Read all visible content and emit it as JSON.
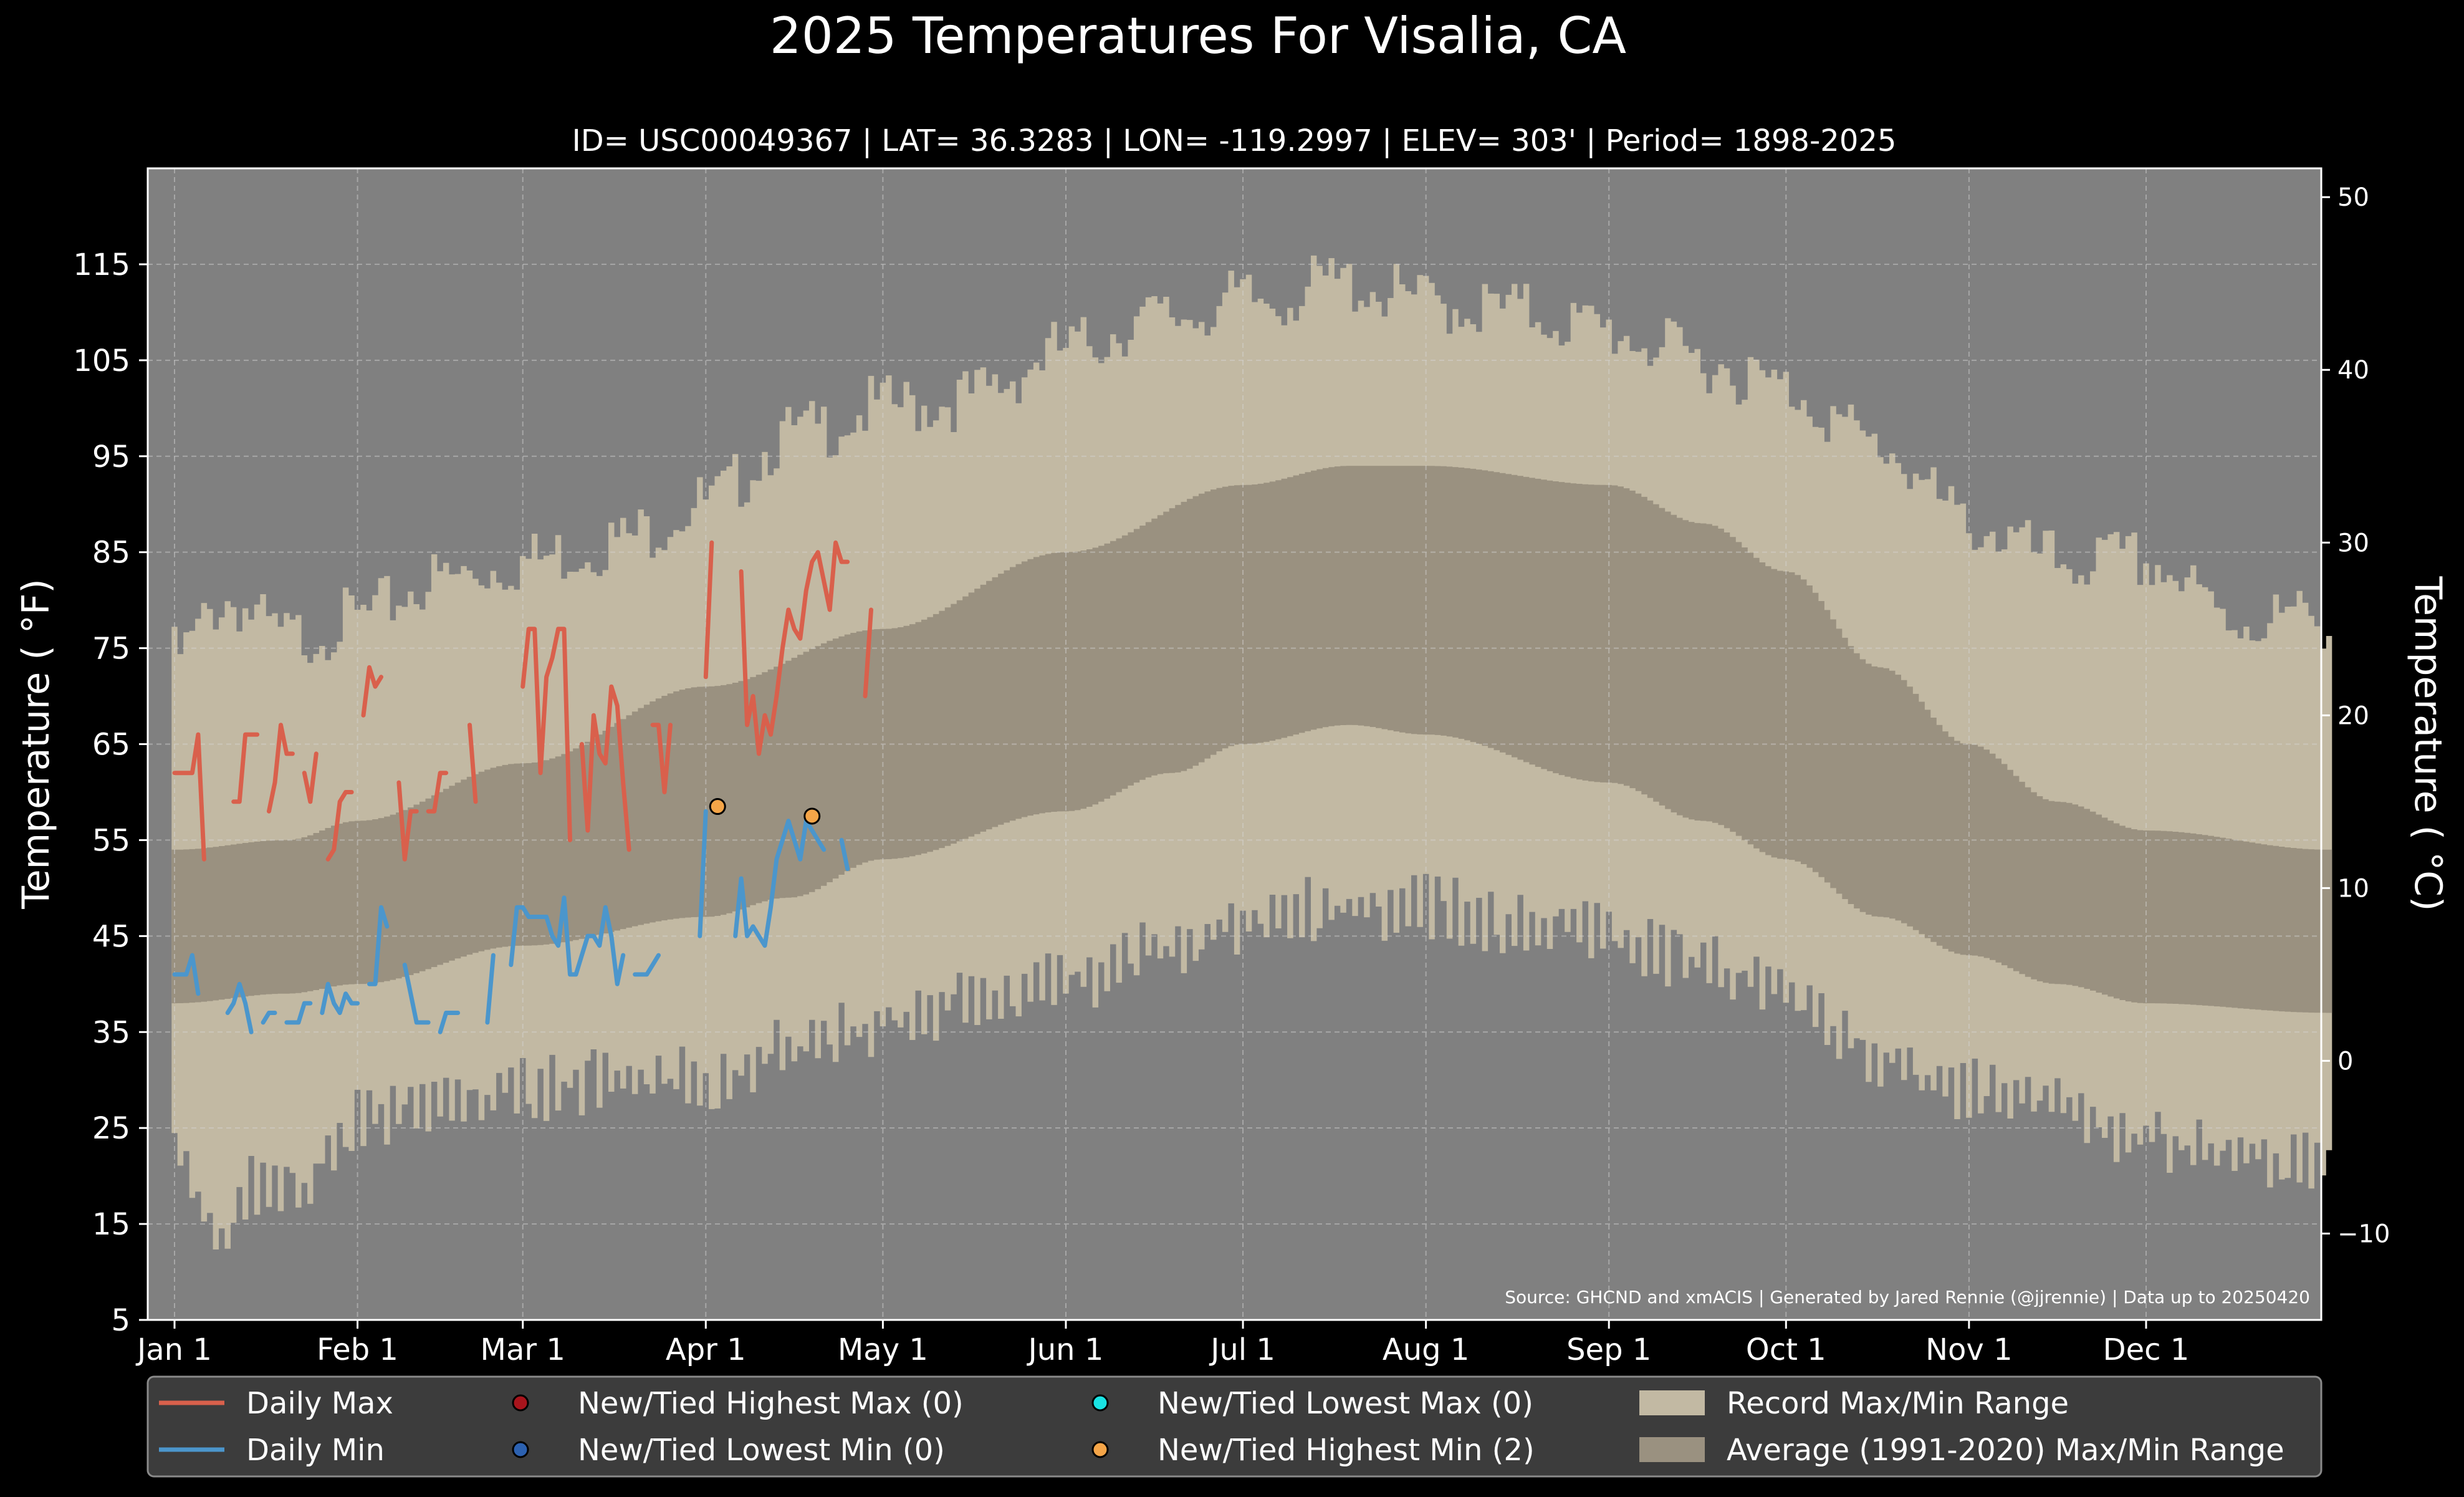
{
  "chart_data": {
    "type": "area",
    "title": "2025 Temperatures For Visalia, CA",
    "subtitle": "ID= USC00049367 | LAT= 36.3283 | LON= -119.2997 | ELEV= 303' | Period= 1898-2025",
    "ylabel": "Temperature ($^\\circ$F)",
    "ylabel_display": "Temperature ( °F)",
    "y2label_display": "Temperature ( °C)",
    "source": "Source: GHCND and xmACIS | Generated by Jared Rennie (@jjrennie) | Data up to 20250420",
    "xlim": [
      0,
      366
    ],
    "ylim": [
      5,
      125
    ],
    "grid": true,
    "legend_position": "bottom",
    "y_ticks": [
      5,
      15,
      25,
      35,
      45,
      55,
      65,
      75,
      85,
      95,
      105,
      115
    ],
    "y2_ticks": [
      -10,
      0,
      10,
      20,
      30,
      40,
      50
    ],
    "x_ticks": [
      {
        "label": "Jan 1",
        "day": 1
      },
      {
        "label": "Feb 1",
        "day": 32
      },
      {
        "label": "Mar 1",
        "day": 60
      },
      {
        "label": "Apr 1",
        "day": 91
      },
      {
        "label": "May 1",
        "day": 121
      },
      {
        "label": "Jun 1",
        "day": 152
      },
      {
        "label": "Jul 1",
        "day": 182
      },
      {
        "label": "Aug 1",
        "day": 213
      },
      {
        "label": "Sep 1",
        "day": 244
      },
      {
        "label": "Oct 1",
        "day": 274
      },
      {
        "label": "Nov 1",
        "day": 305
      },
      {
        "label": "Dec 1",
        "day": 335
      }
    ],
    "record_max_nodes": [
      [
        1,
        74
      ],
      [
        10,
        80
      ],
      [
        20,
        76
      ],
      [
        32,
        78
      ],
      [
        45,
        82
      ],
      [
        60,
        84
      ],
      [
        75,
        86
      ],
      [
        91,
        90
      ],
      [
        105,
        97
      ],
      [
        121,
        100
      ],
      [
        135,
        101
      ],
      [
        152,
        106
      ],
      [
        165,
        109
      ],
      [
        182,
        111
      ],
      [
        200,
        113
      ],
      [
        213,
        111
      ],
      [
        230,
        110
      ],
      [
        244,
        108
      ],
      [
        260,
        105
      ],
      [
        274,
        102
      ],
      [
        290,
        96
      ],
      [
        305,
        88
      ],
      [
        320,
        84
      ],
      [
        335,
        84
      ],
      [
        350,
        78
      ],
      [
        366,
        78
      ]
    ],
    "record_min_nodes": [
      [
        1,
        22
      ],
      [
        8,
        14
      ],
      [
        15,
        19
      ],
      [
        22,
        19
      ],
      [
        32,
        26
      ],
      [
        45,
        27
      ],
      [
        60,
        29
      ],
      [
        75,
        30
      ],
      [
        91,
        30
      ],
      [
        105,
        33
      ],
      [
        121,
        36
      ],
      [
        135,
        38
      ],
      [
        152,
        40
      ],
      [
        165,
        43
      ],
      [
        182,
        46
      ],
      [
        195,
        48
      ],
      [
        213,
        48
      ],
      [
        230,
        46
      ],
      [
        244,
        45
      ],
      [
        260,
        42
      ],
      [
        274,
        39
      ],
      [
        290,
        32
      ],
      [
        305,
        29
      ],
      [
        320,
        27
      ],
      [
        335,
        24
      ],
      [
        350,
        22
      ],
      [
        366,
        22
      ]
    ],
    "avg_max_nodes": [
      [
        1,
        54
      ],
      [
        20,
        55
      ],
      [
        32,
        57
      ],
      [
        60,
        63
      ],
      [
        91,
        71
      ],
      [
        121,
        77
      ],
      [
        152,
        85
      ],
      [
        182,
        92
      ],
      [
        200,
        94
      ],
      [
        213,
        94
      ],
      [
        244,
        92
      ],
      [
        260,
        88
      ],
      [
        274,
        83
      ],
      [
        290,
        73
      ],
      [
        305,
        65
      ],
      [
        320,
        59
      ],
      [
        335,
        56
      ],
      [
        366,
        54
      ]
    ],
    "avg_min_nodes": [
      [
        1,
        38
      ],
      [
        20,
        39
      ],
      [
        32,
        40
      ],
      [
        60,
        44
      ],
      [
        91,
        47
      ],
      [
        105,
        49
      ],
      [
        121,
        53
      ],
      [
        152,
        58
      ],
      [
        170,
        62
      ],
      [
        182,
        65
      ],
      [
        200,
        67
      ],
      [
        213,
        66
      ],
      [
        244,
        61
      ],
      [
        260,
        57
      ],
      [
        274,
        53
      ],
      [
        290,
        47
      ],
      [
        305,
        43
      ],
      [
        320,
        40
      ],
      [
        335,
        38
      ],
      [
        366,
        37
      ]
    ],
    "series": [
      {
        "name": "Daily Max",
        "color": "#d9604c",
        "values": [
          62,
          62,
          62,
          62,
          66,
          53,
          null,
          null,
          null,
          null,
          59,
          59,
          66,
          66,
          66,
          null,
          58,
          61,
          67,
          64,
          64,
          null,
          62,
          59,
          64,
          null,
          53,
          54,
          59,
          60,
          60,
          null,
          68,
          73,
          71,
          72,
          null,
          null,
          61,
          53,
          58,
          58,
          null,
          58,
          58,
          62,
          62,
          null,
          null,
          null,
          67,
          59,
          null,
          null,
          null,
          null,
          null,
          null,
          null,
          71,
          77,
          77,
          62,
          72,
          74,
          77,
          77,
          55,
          null,
          65,
          56,
          68,
          64,
          63,
          71,
          69,
          61,
          54,
          null,
          null,
          null,
          67,
          67,
          60,
          67,
          null,
          null,
          null,
          null,
          null,
          72,
          86,
          null,
          null,
          null,
          null,
          83,
          67,
          70,
          64,
          68,
          66,
          70,
          75,
          79,
          77,
          76,
          81,
          84,
          85,
          82,
          79,
          86,
          84,
          84,
          null,
          null,
          70,
          79
        ],
        "start_day": 1
      },
      {
        "name": "Daily Min",
        "color": "#4b96cc",
        "values": [
          41,
          41,
          41,
          43,
          39,
          null,
          null,
          null,
          null,
          37,
          38,
          40,
          38,
          35,
          null,
          36,
          37,
          37,
          null,
          36,
          36,
          36,
          38,
          38,
          null,
          37,
          40,
          38,
          37,
          39,
          38,
          38,
          null,
          40,
          40,
          48,
          46,
          null,
          null,
          42,
          39,
          36,
          36,
          36,
          null,
          35,
          37,
          37,
          37,
          null,
          null,
          null,
          null,
          36,
          43,
          null,
          null,
          42,
          48,
          48,
          47,
          47,
          47,
          47,
          45,
          44,
          49,
          41,
          41,
          43,
          45,
          45,
          44,
          48,
          45,
          40,
          43,
          null,
          41,
          41,
          41,
          42,
          43,
          null,
          null,
          null,
          null,
          null,
          null,
          45,
          58,
          null,
          null,
          null,
          null,
          45,
          51,
          45,
          46,
          45,
          44,
          48,
          53,
          55,
          57,
          55,
          53,
          57,
          56,
          55,
          54,
          null,
          null,
          55,
          52
        ],
        "start_day": 1
      }
    ],
    "markers": [
      {
        "series": "New/Tied Highest Min (2)",
        "day": 93,
        "value": 58.5,
        "color": "#f5a548"
      },
      {
        "series": "New/Tied Highest Min (2)",
        "day": 109,
        "value": 57.5,
        "color": "#f5a548"
      }
    ],
    "legend": [
      {
        "label": "Daily Max",
        "kind": "line",
        "color": "#d9604c"
      },
      {
        "label": "New/Tied Highest Max (0)",
        "kind": "marker",
        "color": "#a8141c"
      },
      {
        "label": "New/Tied Lowest Max (0)",
        "kind": "marker",
        "color": "#19e3e3"
      },
      {
        "label": "Record Max/Min Range",
        "kind": "patch",
        "color": "#c2b9a3"
      },
      {
        "label": "Daily Min",
        "kind": "line",
        "color": "#4b96cc"
      },
      {
        "label": "New/Tied Lowest Min (0)",
        "kind": "marker",
        "color": "#2c61b0"
      },
      {
        "label": "New/Tied Highest Min (2)",
        "kind": "marker",
        "color": "#f5a548"
      },
      {
        "label": "Average (1991-2020) Max/Min Range",
        "kind": "patch",
        "color": "#9a9180"
      }
    ],
    "colors": {
      "background": "#000000",
      "plot_background": "#808080",
      "record_band": "#c2b9a3",
      "average_band": "#9a9180",
      "legend_background": "#3c3c3c"
    }
  }
}
